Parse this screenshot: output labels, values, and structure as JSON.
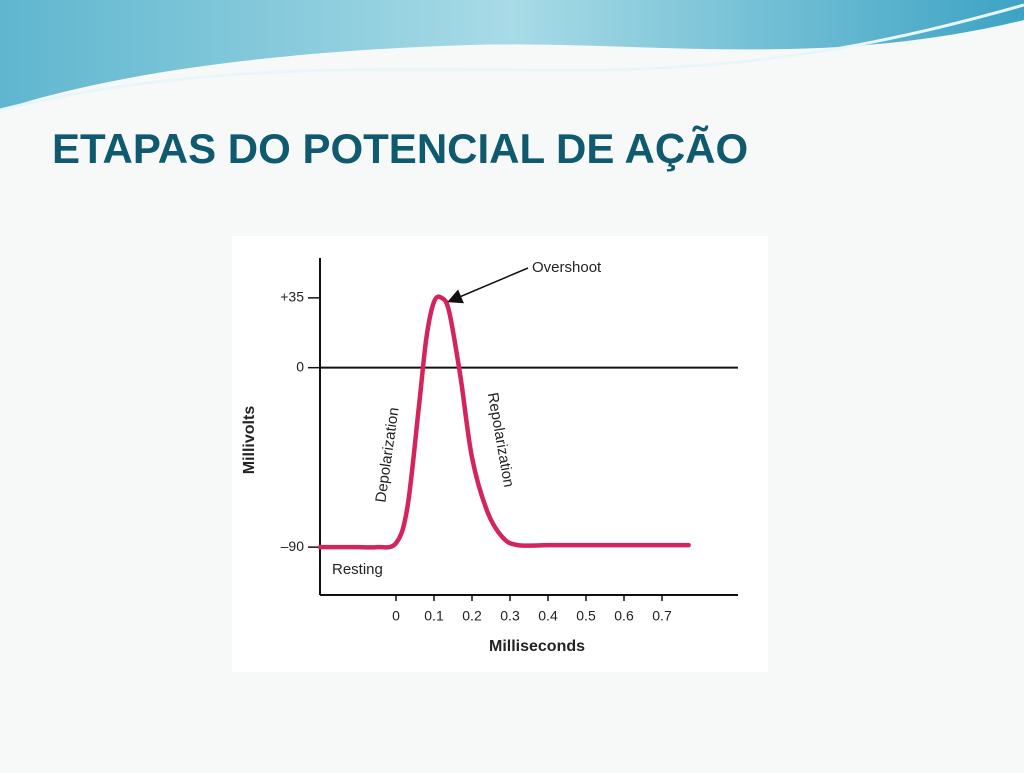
{
  "slide_title": "ETAPAS DO POTENCIAL DE AÇÃO",
  "chart_data": {
    "type": "line",
    "x_label": "Milliseconds",
    "y_label": "Millivolts",
    "x": [
      -0.2,
      -0.1,
      -0.05,
      0,
      0.03,
      0.06,
      0.08,
      0.1,
      0.12,
      0.14,
      0.17,
      0.2,
      0.24,
      0.28,
      0.32,
      0.4,
      0.5,
      0.6,
      0.7,
      0.77
    ],
    "values": [
      -90,
      -90,
      -90,
      -88,
      -70,
      -20,
      15,
      33,
      35,
      28,
      -5,
      -45,
      -72,
      -85,
      -89,
      -89,
      -89,
      -89,
      -89,
      -89
    ],
    "color": "#d4245c",
    "xlim": [
      -0.2,
      0.9
    ],
    "ylim": [
      -114,
      55
    ],
    "xticks": [
      0,
      0.1,
      0.2,
      0.3,
      0.4,
      0.5,
      0.6,
      0.7
    ],
    "yticks": [
      {
        "value": 35,
        "label": "+35"
      },
      0,
      {
        "value": -90,
        "label": "–90"
      }
    ],
    "zero_line": true,
    "annotations": [
      "Overshoot",
      "Depolarization",
      "Repolarization",
      "Resting"
    ]
  }
}
